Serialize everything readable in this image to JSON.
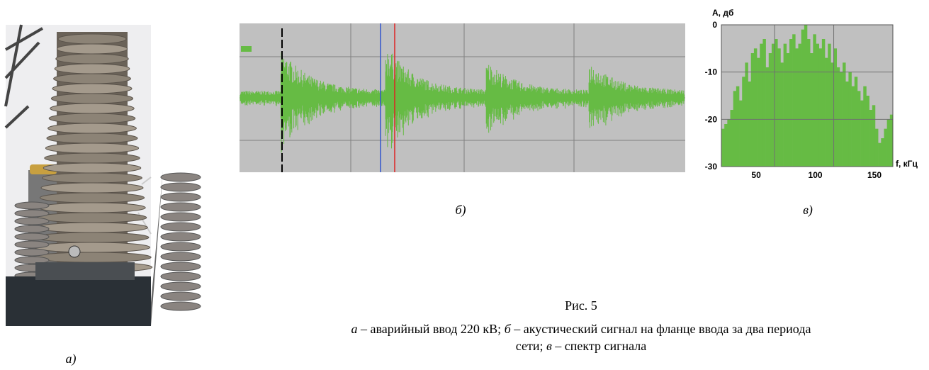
{
  "panels": {
    "a": "а)",
    "b": "б)",
    "c": "в)"
  },
  "caption": {
    "title": "Рис. 5",
    "line1": [
      "а",
      " – аварийный ввод 220 кВ; ",
      "б",
      " – акустический сигнал на фланце ввода за два периода"
    ],
    "line2": [
      "сети; ",
      "в",
      " – спектр сигнала"
    ]
  },
  "chart_data": {
    "type": "histogram",
    "y_label": "А, дб",
    "x_label": "f, кГц",
    "color": "#66bb44",
    "grid": true,
    "bins": [
      5,
      7.5,
      10,
      12.5,
      15,
      17.5,
      20,
      22.5,
      25,
      27.5,
      30,
      32.5,
      35,
      37.5,
      40,
      42.5,
      45,
      47.5,
      50,
      52.5,
      55,
      57.5,
      60,
      62.5,
      65,
      67.5,
      70,
      72.5,
      75,
      77.5,
      80,
      82.5,
      85,
      87.5,
      90,
      92.5,
      95,
      97.5,
      100,
      102.5,
      105,
      107.5,
      110,
      112.5,
      115,
      117.5,
      120,
      122.5,
      125,
      127.5,
      130,
      132.5,
      135,
      137.5,
      140,
      142.5,
      145,
      147.5,
      150
    ],
    "values": [
      -22,
      -21,
      -20,
      -18,
      -14,
      -13,
      -16,
      -11,
      -8,
      -12,
      -6,
      -5,
      -7,
      -4,
      -3,
      -9,
      -6,
      -4,
      -3,
      -5,
      -8,
      -4,
      -6,
      -3,
      -2,
      -5,
      -4,
      -1,
      0,
      -3,
      -6,
      -2,
      -4,
      -5,
      -3,
      -7,
      -4,
      -8,
      -5,
      -9,
      -10,
      -8,
      -12,
      -10,
      -13,
      -11,
      -14,
      -16,
      -13,
      -15,
      -18,
      -17,
      -22,
      -25,
      -24,
      -22,
      -20,
      -19
    ],
    "xlim": [
      5,
      150
    ],
    "ylim": [
      -30,
      0
    ],
    "xticks": [
      50,
      100,
      150
    ],
    "yticks": [
      0,
      -10,
      -20,
      -30
    ]
  }
}
